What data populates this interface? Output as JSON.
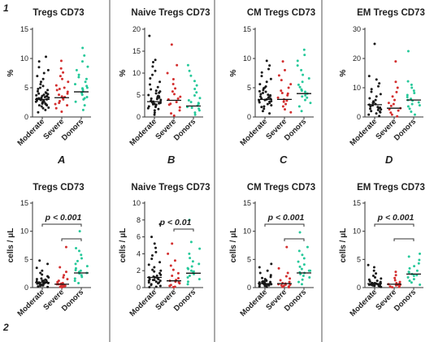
{
  "figure": {
    "row_labels": [
      "1",
      "2"
    ],
    "panel_letters": [
      "A",
      "B",
      "C",
      "D"
    ]
  },
  "colors": {
    "Moderate": "#1a1a1a",
    "Severe": "#d32f2f",
    "Donors": "#26c99a",
    "axis": "#333333",
    "divider": "#555555",
    "text": "#222222"
  },
  "chart_data": [
    {
      "type": "scatter",
      "title": "Tregs CD73",
      "ylabel": "%",
      "categories": [
        "Moderate",
        "Severe",
        "Donors"
      ],
      "ylim": [
        0,
        15
      ],
      "yticks": [
        0,
        5,
        10,
        15
      ],
      "series": [
        {
          "name": "Moderate",
          "values": [
            0.8,
            1.2,
            1.5,
            1.8,
            2.0,
            2.1,
            2.2,
            2.3,
            2.4,
            2.5,
            2.6,
            2.7,
            2.8,
            2.9,
            3.0,
            3.0,
            3.1,
            3.2,
            3.3,
            3.4,
            3.5,
            3.6,
            3.7,
            3.8,
            3.9,
            4.0,
            4.2,
            4.4,
            4.6,
            4.8,
            5.0,
            5.3,
            5.6,
            6.0,
            6.5,
            7.0,
            7.5,
            8.0,
            8.5,
            9.5,
            10.3,
            2.0,
            2.6,
            3.1,
            3.6,
            4.1,
            2.3,
            2.8,
            3.3,
            1.6
          ],
          "median": 3.0
        },
        {
          "name": "Severe",
          "values": [
            0.9,
            1.5,
            2.0,
            2.4,
            2.7,
            3.0,
            3.2,
            3.5,
            3.8,
            4.0,
            4.3,
            4.6,
            5.0,
            5.4,
            6.0,
            6.5,
            7.0,
            7.6,
            8.3,
            9.6,
            2.2,
            3.4,
            4.8
          ],
          "median": 3.3
        },
        {
          "name": "Donors",
          "values": [
            1.2,
            2.0,
            2.6,
            3.0,
            3.4,
            3.8,
            4.1,
            4.4,
            4.7,
            5.0,
            5.3,
            5.6,
            6.0,
            6.5,
            7.2,
            8.0,
            8.6,
            9.5,
            10.5,
            11.8,
            3.2,
            4.9,
            6.8
          ],
          "median": 4.3
        }
      ]
    },
    {
      "type": "scatter",
      "title": "Naive Tregs CD73",
      "ylabel": "%",
      "categories": [
        "Moderate",
        "Severe",
        "Donors"
      ],
      "ylim": [
        0,
        20
      ],
      "yticks": [
        0,
        5,
        10,
        15,
        20
      ],
      "series": [
        {
          "name": "Moderate",
          "values": [
            0.5,
            1.0,
            1.5,
            2.0,
            2.3,
            2.6,
            2.9,
            3.1,
            3.3,
            3.5,
            3.7,
            3.9,
            4.1,
            4.4,
            4.7,
            5.0,
            5.4,
            5.8,
            6.3,
            6.8,
            7.4,
            8.0,
            8.8,
            9.6,
            10.5,
            11.5,
            12.5,
            13.0,
            18.5,
            2.8,
            3.2,
            3.6,
            4.2,
            4.8,
            5.5,
            6.0,
            2.4,
            3.0,
            1.8,
            4.5
          ],
          "median": 3.5
        },
        {
          "name": "Severe",
          "values": [
            0.3,
            0.8,
            1.5,
            2.2,
            2.8,
            3.4,
            4.0,
            4.6,
            5.2,
            5.8,
            6.5,
            7.5,
            8.6,
            10.0,
            11.8,
            16.5,
            3.0,
            4.2
          ],
          "median": 3.8
        },
        {
          "name": "Donors",
          "values": [
            0.5,
            1.0,
            1.5,
            1.9,
            2.3,
            2.6,
            3.0,
            3.4,
            3.8,
            4.3,
            4.9,
            5.6,
            6.4,
            7.2,
            8.2,
            9.4,
            10.5,
            11.8,
            2.1,
            3.2
          ],
          "median": 2.5
        }
      ]
    },
    {
      "type": "scatter",
      "title": "CM Tregs CD73",
      "ylabel": "%",
      "categories": [
        "Moderate",
        "Severe",
        "Donors"
      ],
      "ylim": [
        0,
        15
      ],
      "yticks": [
        0,
        5,
        10,
        15
      ],
      "series": [
        {
          "name": "Moderate",
          "values": [
            0.6,
            1.0,
            1.4,
            1.7,
            2.0,
            2.2,
            2.4,
            2.6,
            2.8,
            3.0,
            3.1,
            3.2,
            3.3,
            3.5,
            3.7,
            3.9,
            4.1,
            4.3,
            4.6,
            4.9,
            5.2,
            5.6,
            6.0,
            6.5,
            7.0,
            7.6,
            8.2,
            8.8,
            9.6,
            2.5,
            2.9,
            3.4,
            3.8,
            4.4,
            1.8,
            2.7,
            3.6,
            5.0
          ],
          "median": 3.0
        },
        {
          "name": "Severe",
          "values": [
            0.8,
            1.3,
            1.8,
            2.2,
            2.6,
            3.0,
            3.3,
            3.7,
            4.1,
            4.5,
            5.0,
            5.6,
            6.3,
            7.1,
            8.0,
            9.5,
            2.8,
            4.0
          ],
          "median": 3.0
        },
        {
          "name": "Donors",
          "values": [
            1.0,
            1.8,
            2.4,
            2.9,
            3.3,
            3.7,
            4.0,
            4.3,
            4.7,
            5.1,
            5.5,
            6.0,
            6.6,
            7.2,
            8.0,
            8.8,
            9.6,
            10.6,
            11.5,
            3.5,
            4.5
          ],
          "median": 4.0
        }
      ]
    },
    {
      "type": "scatter",
      "title": "EM Tregs CD73",
      "ylabel": "%",
      "categories": [
        "Moderate",
        "Severe",
        "Donors"
      ],
      "ylim": [
        0,
        30
      ],
      "yticks": [
        0,
        10,
        20,
        30
      ],
      "series": [
        {
          "name": "Moderate",
          "values": [
            0.3,
            0.8,
            1.2,
            1.6,
            2.0,
            2.4,
            2.8,
            3.2,
            3.6,
            4.0,
            4.4,
            4.8,
            5.3,
            5.8,
            6.4,
            7.0,
            7.8,
            8.6,
            9.5,
            10.5,
            11.5,
            12.8,
            14.0,
            25.0,
            3.0,
            3.4,
            4.2,
            5.0,
            2.6,
            1.8
          ],
          "median": 4.2
        },
        {
          "name": "Severe",
          "values": [
            0.2,
            0.8,
            1.5,
            2.2,
            3.0,
            3.8,
            4.8,
            5.8,
            7.0,
            8.5,
            10.0,
            12.0,
            19.0,
            2.6,
            4.4
          ],
          "median": 3.0
        },
        {
          "name": "Donors",
          "values": [
            0.8,
            1.8,
            2.8,
            3.6,
            4.4,
            5.0,
            5.6,
            6.2,
            6.8,
            7.5,
            8.2,
            9.0,
            10.0,
            11.0,
            12.2,
            22.5,
            4.0,
            5.8
          ],
          "median": 5.8
        }
      ]
    },
    {
      "type": "scatter",
      "title": "Tregs CD73",
      "ylabel": "cells / μL",
      "categories": [
        "Moderate",
        "Severe",
        "Donors"
      ],
      "ylim": [
        0,
        15
      ],
      "yticks": [
        0,
        5,
        10,
        15
      ],
      "annotation": "p < 0.001",
      "brackets": [
        [
          "Moderate",
          "Donors"
        ],
        [
          "Severe",
          "Donors"
        ]
      ],
      "dashed_zero": true,
      "series": [
        {
          "name": "Moderate",
          "values": [
            0.1,
            0.2,
            0.3,
            0.4,
            0.5,
            0.5,
            0.6,
            0.7,
            0.7,
            0.8,
            0.8,
            0.9,
            0.9,
            1.0,
            1.0,
            1.1,
            1.2,
            1.3,
            1.4,
            1.5,
            1.6,
            1.8,
            2.0,
            2.3,
            2.6,
            3.0,
            3.5,
            4.2,
            4.8,
            0.6,
            0.9,
            1.2,
            0.4,
            0.7
          ],
          "median": 0.9
        },
        {
          "name": "Severe",
          "values": [
            0.05,
            0.1,
            0.2,
            0.3,
            0.4,
            0.5,
            0.6,
            0.7,
            0.8,
            1.0,
            1.2,
            1.5,
            1.8,
            2.2,
            2.8,
            3.6,
            7.2,
            0.4,
            0.6
          ],
          "median": 0.6
        },
        {
          "name": "Donors",
          "values": [
            0.8,
            1.2,
            1.6,
            1.9,
            2.2,
            2.5,
            2.8,
            3.1,
            3.4,
            3.8,
            4.2,
            4.7,
            5.2,
            5.8,
            6.5,
            7.0,
            10.0,
            2.6,
            3.0
          ],
          "median": 2.6
        }
      ]
    },
    {
      "type": "scatter",
      "title": "Naive Tregs CD73",
      "ylabel": "cells / μL",
      "categories": [
        "Moderate",
        "Severe",
        "Donors"
      ],
      "ylim": [
        0,
        10
      ],
      "yticks": [
        0,
        2,
        4,
        6,
        8,
        10
      ],
      "annotation": "p < 0.01",
      "brackets": [
        [
          "Severe",
          "Donors"
        ]
      ],
      "series": [
        {
          "name": "Moderate",
          "values": [
            0.05,
            0.1,
            0.2,
            0.3,
            0.4,
            0.5,
            0.6,
            0.7,
            0.8,
            0.9,
            1.0,
            1.1,
            1.2,
            1.3,
            1.5,
            1.7,
            1.9,
            2.1,
            2.4,
            2.7,
            3.0,
            3.4,
            3.8,
            4.2,
            4.7,
            5.2,
            6.0,
            7.5,
            0.8,
            1.0,
            1.4,
            0.6,
            2.0,
            1.2,
            0.9
          ],
          "median": 1.2
        },
        {
          "name": "Severe",
          "values": [
            0.05,
            0.1,
            0.2,
            0.3,
            0.5,
            0.7,
            0.9,
            1.1,
            1.4,
            1.7,
            2.1,
            2.6,
            3.2,
            4.0,
            5.2,
            0.6,
            0.8
          ],
          "median": 0.8
        },
        {
          "name": "Donors",
          "values": [
            0.4,
            0.7,
            1.0,
            1.2,
            1.4,
            1.6,
            1.8,
            2.0,
            2.2,
            2.5,
            2.8,
            3.1,
            3.5,
            4.0,
            4.6,
            5.4,
            8.0,
            1.9,
            2.3
          ],
          "median": 1.7
        }
      ]
    },
    {
      "type": "scatter",
      "title": "CM Tregs CD73",
      "ylabel": "cells / μL",
      "categories": [
        "Moderate",
        "Severe",
        "Donors"
      ],
      "ylim": [
        0,
        15
      ],
      "yticks": [
        0,
        5,
        10,
        15
      ],
      "annotation": "p < 0.001",
      "brackets": [
        [
          "Moderate",
          "Donors"
        ],
        [
          "Severe",
          "Donors"
        ]
      ],
      "series": [
        {
          "name": "Moderate",
          "values": [
            0.1,
            0.2,
            0.3,
            0.4,
            0.5,
            0.5,
            0.6,
            0.6,
            0.7,
            0.7,
            0.8,
            0.8,
            0.9,
            1.0,
            1.0,
            1.1,
            1.2,
            1.3,
            1.5,
            1.7,
            1.9,
            2.2,
            2.6,
            3.0,
            3.6,
            4.2,
            0.6,
            0.9,
            0.4,
            0.7,
            1.1
          ],
          "median": 0.7
        },
        {
          "name": "Severe",
          "values": [
            0.05,
            0.1,
            0.2,
            0.3,
            0.4,
            0.5,
            0.6,
            0.8,
            1.0,
            1.3,
            1.6,
            2.0,
            2.6,
            3.4,
            7.2,
            0.5,
            0.7
          ],
          "median": 0.7
        },
        {
          "name": "Donors",
          "values": [
            0.6,
            1.0,
            1.4,
            1.8,
            2.1,
            2.4,
            2.7,
            3.0,
            3.3,
            3.7,
            4.1,
            4.6,
            5.2,
            5.8,
            6.5,
            7.2,
            9.8,
            2.6,
            3.0
          ],
          "median": 2.6
        }
      ]
    },
    {
      "type": "scatter",
      "title": "EM Tregs CD73",
      "ylabel": "cells / μL",
      "categories": [
        "Moderate",
        "Severe",
        "Donors"
      ],
      "ylim": [
        0,
        15
      ],
      "yticks": [
        0,
        5,
        10,
        15
      ],
      "annotation": "p < 0.001",
      "brackets": [
        [
          "Moderate",
          "Donors"
        ],
        [
          "Severe",
          "Donors"
        ]
      ],
      "series": [
        {
          "name": "Moderate",
          "values": [
            0.1,
            0.2,
            0.3,
            0.4,
            0.4,
            0.5,
            0.5,
            0.6,
            0.6,
            0.7,
            0.7,
            0.8,
            0.8,
            0.9,
            1.0,
            1.1,
            1.2,
            1.4,
            1.6,
            1.8,
            2.1,
            2.5,
            3.0,
            3.6,
            4.0,
            0.6,
            0.8,
            0.5,
            0.3
          ],
          "median": 0.7
        },
        {
          "name": "Severe",
          "values": [
            0.05,
            0.1,
            0.2,
            0.3,
            0.4,
            0.5,
            0.6,
            0.8,
            1.0,
            1.3,
            1.7,
            2.2,
            2.8,
            0.5,
            0.7
          ],
          "median": 0.6
        },
        {
          "name": "Donors",
          "values": [
            0.5,
            0.9,
            1.2,
            1.5,
            1.8,
            2.1,
            2.4,
            2.7,
            3.0,
            3.4,
            3.8,
            4.3,
            4.9,
            5.5,
            6.0,
            2.2,
            2.8
          ],
          "median": 2.4
        }
      ]
    }
  ]
}
